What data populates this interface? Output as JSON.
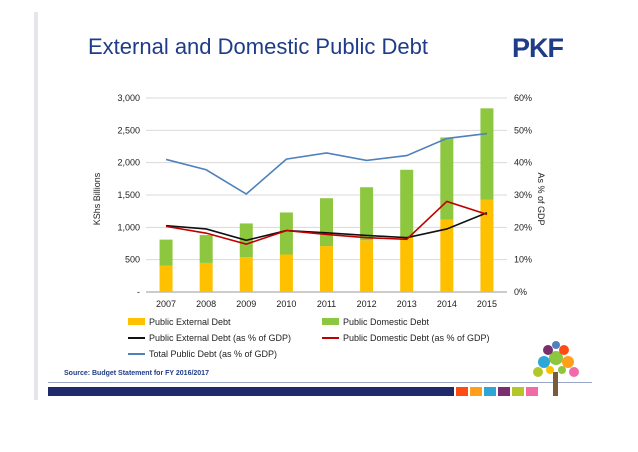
{
  "header": {
    "title": "External and Domestic Public Debt",
    "logo_text": "PKF"
  },
  "source": "Source: Budget Statement for FY 2016/2017",
  "colors": {
    "external_debt": "#ffc000",
    "domestic_debt": "#8dc63f",
    "external_pct": "#111111",
    "domestic_pct": "#c00000",
    "total_pct": "#4f81bd",
    "brand_blue": "#1f3c88",
    "footer_squares": [
      "#ff4b14",
      "#ff9f1c",
      "#2ea7d6",
      "#7a2e6e",
      "#b3c72b",
      "#f06ba8"
    ]
  },
  "chart_data": {
    "type": "bar",
    "categories": [
      "2007",
      "2008",
      "2009",
      "2010",
      "2011",
      "2012",
      "2013",
      "2014",
      "2015"
    ],
    "y_left": {
      "label": "KShs Billions",
      "range": [
        0,
        3000
      ],
      "ticks": [
        0,
        500,
        1000,
        1500,
        2000,
        2500,
        3000
      ],
      "tick_labels": [
        "-",
        "500",
        "1,000",
        "1,500",
        "2,000",
        "2,500",
        "3,000"
      ]
    },
    "y_right": {
      "label": "As % of GDP",
      "range": [
        0,
        60
      ],
      "ticks": [
        0,
        10,
        20,
        30,
        40,
        50,
        60
      ],
      "tick_labels": [
        "0%",
        "10%",
        "20%",
        "30%",
        "40%",
        "50%",
        "60%"
      ]
    },
    "stacked": true,
    "grid": true,
    "legend_position": "bottom",
    "series": [
      {
        "name": "Public External Debt",
        "type": "bar",
        "axis": "left",
        "values": [
          410,
          450,
          540,
          580,
          710,
          800,
          840,
          1120,
          1430
        ]
      },
      {
        "name": "Public Domestic Debt",
        "type": "bar",
        "axis": "left",
        "values": [
          400,
          430,
          520,
          650,
          740,
          820,
          1050,
          1270,
          1410
        ]
      },
      {
        "name": "Public External Debt (as % of GDP)",
        "type": "line",
        "axis": "right",
        "values": [
          20.5,
          19.5,
          16,
          19,
          18.3,
          17.5,
          16.8,
          19.5,
          24.5
        ]
      },
      {
        "name": "Public Domestic Debt (as % of GDP)",
        "type": "line",
        "axis": "right",
        "values": [
          20.3,
          18.2,
          14.8,
          19,
          17.8,
          16.8,
          16.3,
          28,
          24
        ]
      },
      {
        "name": "Total Public Debt (as % of GDP)",
        "type": "line",
        "axis": "right",
        "values": [
          41,
          37.8,
          30.3,
          41.1,
          43,
          40.7,
          42.2,
          47.5,
          49
        ]
      }
    ]
  }
}
